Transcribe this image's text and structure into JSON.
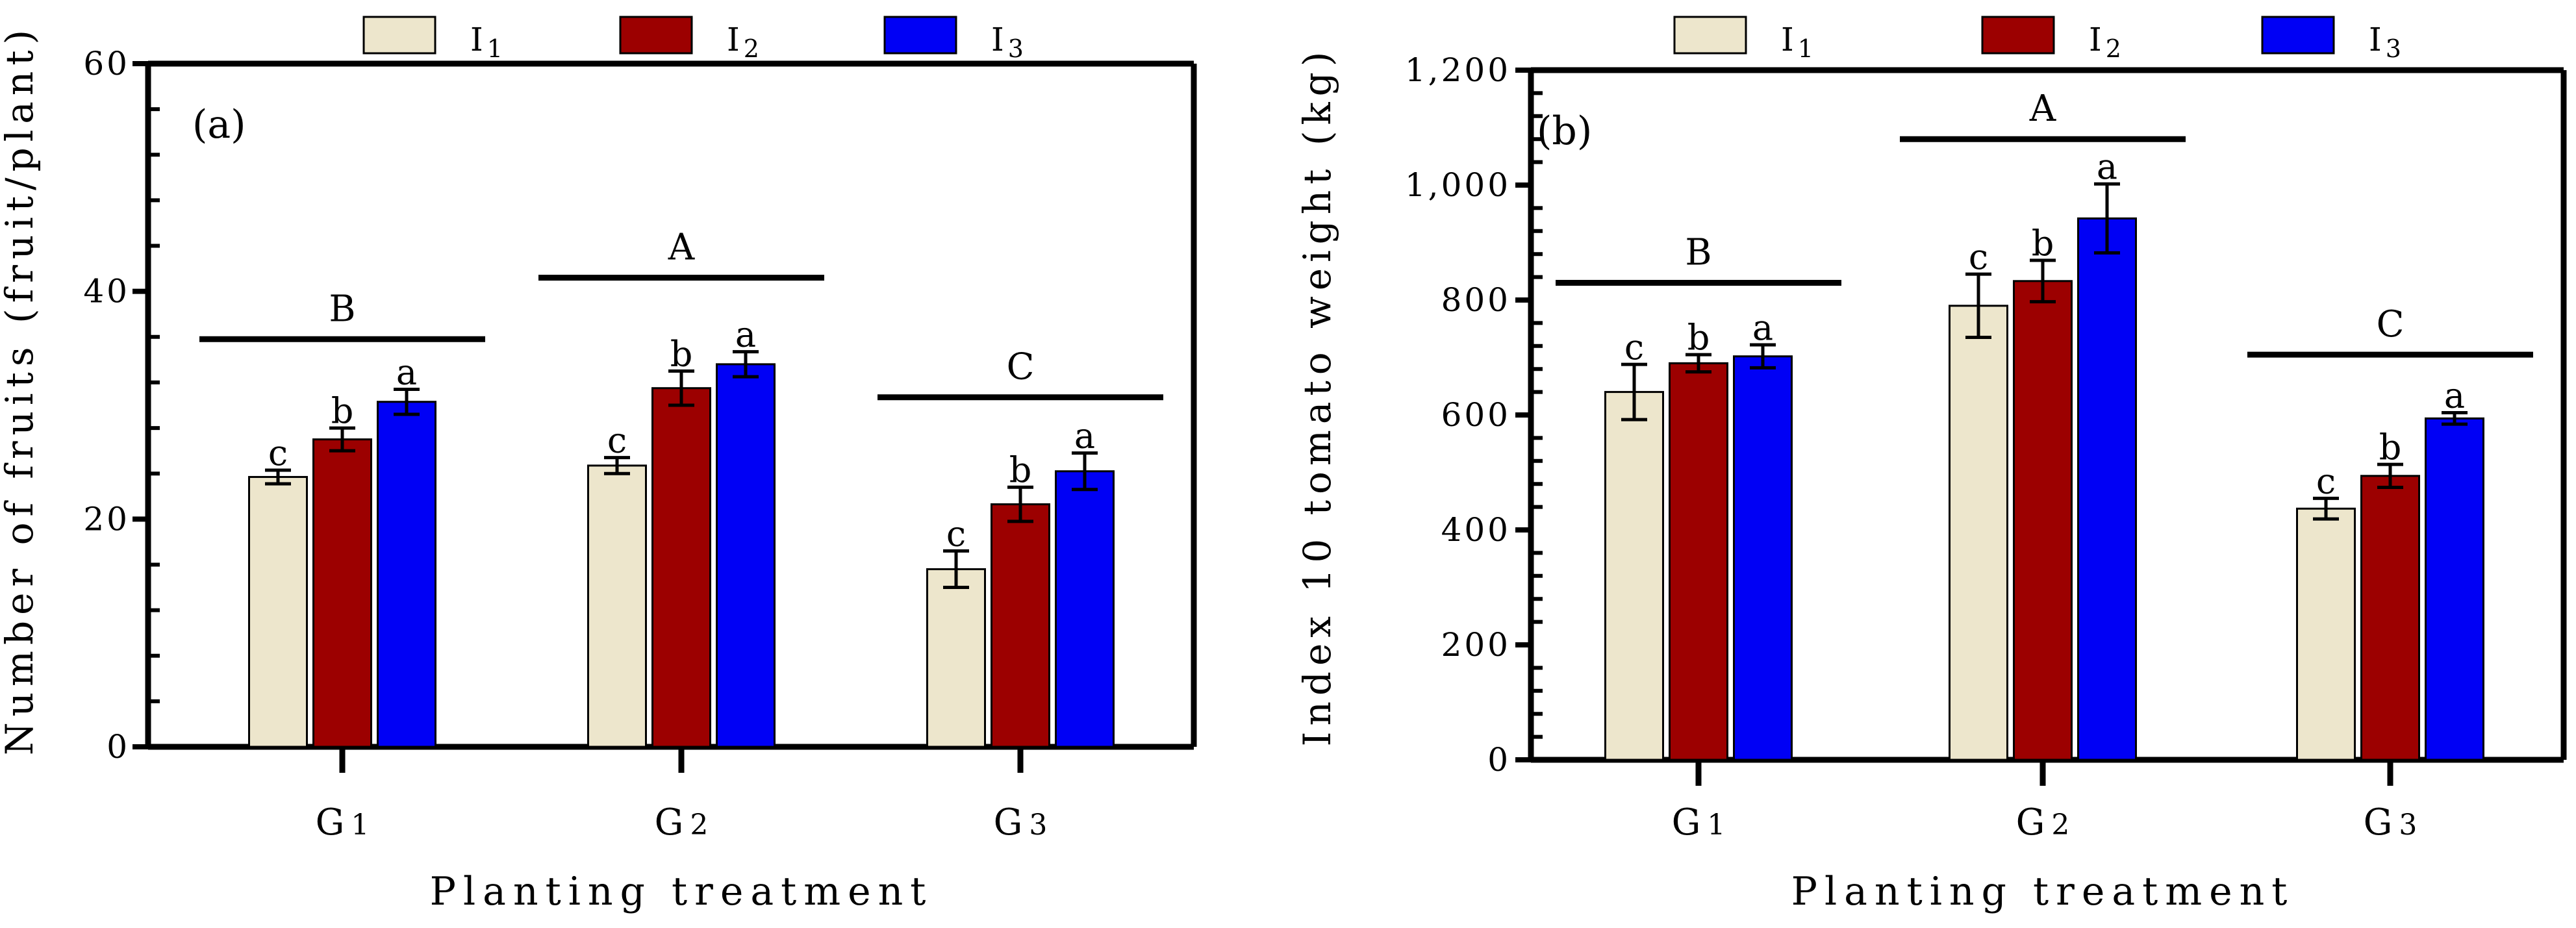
{
  "colors": {
    "I1": "#ede6cc",
    "I2": "#9c0000",
    "I3": "#0000f5",
    "axis": "#000000"
  },
  "chart_data": [
    {
      "type": "bar",
      "panel_label": "(a)",
      "categories": [
        "G1",
        "G2",
        "G3"
      ],
      "category_display": [
        [
          "G",
          "1"
        ],
        [
          "G",
          "2"
        ],
        [
          "G",
          "3"
        ]
      ],
      "legend": [
        {
          "key": "I1",
          "base": "I",
          "sub": "1"
        },
        {
          "key": "I2",
          "base": "I",
          "sub": "2"
        },
        {
          "key": "I3",
          "base": "I",
          "sub": "3"
        }
      ],
      "series": [
        {
          "name": "I1",
          "values": [
            23.7,
            24.7,
            15.6
          ],
          "errors": [
            0.6,
            0.7,
            1.6
          ],
          "letters": [
            "c",
            "c",
            "c"
          ]
        },
        {
          "name": "I2",
          "values": [
            27.0,
            31.5,
            21.3
          ],
          "errors": [
            1.0,
            1.5,
            1.5
          ],
          "letters": [
            "b",
            "b",
            "b"
          ]
        },
        {
          "name": "I3",
          "values": [
            30.3,
            33.6,
            24.2
          ],
          "errors": [
            1.1,
            1.1,
            1.6
          ],
          "letters": [
            "a",
            "a",
            "a"
          ]
        }
      ],
      "group_letters": [
        {
          "label": "B",
          "level": 35.8
        },
        {
          "label": "A",
          "level": 41.2
        },
        {
          "label": "C",
          "level": 30.7
        }
      ],
      "yticks": [
        "0",
        "20",
        "40",
        "60"
      ],
      "ylim": [
        0,
        60
      ],
      "ylabel": "Number of fruits (fruit/plant)",
      "xlabel": "Planting treatment"
    },
    {
      "type": "bar",
      "panel_label": "(b)",
      "categories": [
        "G1",
        "G2",
        "G3"
      ],
      "category_display": [
        [
          "G",
          "1"
        ],
        [
          "G",
          "2"
        ],
        [
          "G",
          "3"
        ]
      ],
      "legend": [
        {
          "key": "I1",
          "base": "I",
          "sub": "1"
        },
        {
          "key": "I2",
          "base": "I",
          "sub": "2"
        },
        {
          "key": "I3",
          "base": "I",
          "sub": "3"
        }
      ],
      "series": [
        {
          "name": "I1",
          "values": [
            640,
            790,
            437
          ],
          "errors": [
            48,
            55,
            18
          ],
          "letters": [
            "c",
            "c",
            "c"
          ]
        },
        {
          "name": "I2",
          "values": [
            690,
            833,
            494
          ],
          "errors": [
            15,
            36,
            20
          ],
          "letters": [
            "b",
            "b",
            "b"
          ]
        },
        {
          "name": "I3",
          "values": [
            702,
            942,
            594
          ],
          "errors": [
            20,
            60,
            10
          ],
          "letters": [
            "a",
            "a",
            "a"
          ]
        }
      ],
      "group_letters": [
        {
          "label": "B",
          "level": 830
        },
        {
          "label": "A",
          "level": 1080
        },
        {
          "label": "C",
          "level": 705
        }
      ],
      "yticks": [
        "0",
        "200",
        "400",
        "600",
        "800",
        "1,000",
        "1,200"
      ],
      "ylim": [
        0,
        1200
      ],
      "ylabel": "Index 10 tomato weight (kg)",
      "xlabel": "Planting treatment"
    }
  ]
}
